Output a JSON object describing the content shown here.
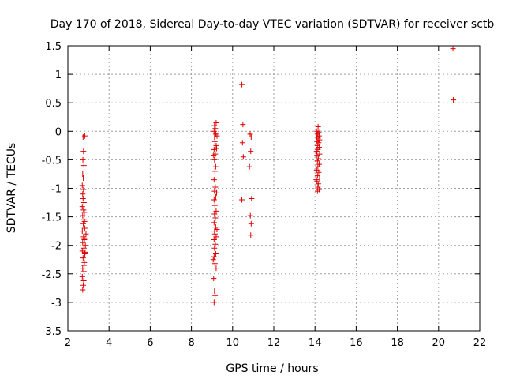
{
  "chart_data": {
    "type": "scatter",
    "title": "Day 170 of 2018, Sidereal Day-to-day VTEC variation (SDTVAR) for receiver sctb",
    "xlabel": "GPS time / hours",
    "ylabel": "SDTVAR / TECUs",
    "xlim": [
      2,
      22
    ],
    "ylim": [
      -3.5,
      1.5
    ],
    "xticks": [
      2,
      4,
      6,
      8,
      10,
      12,
      14,
      16,
      18,
      20,
      22
    ],
    "yticks": [
      -3.5,
      -3,
      -2.5,
      -2,
      -1.5,
      -1,
      -0.5,
      0,
      0.5,
      1,
      1.5
    ],
    "xtick_labels": [
      "2",
      "4",
      "6",
      "8",
      "10",
      "12",
      "14",
      "16",
      "18",
      "20",
      "22"
    ],
    "ytick_labels": [
      "-3.5",
      "-3",
      "-2.5",
      "-2",
      "-1.5",
      "-1",
      "-0.5",
      "0",
      "0.5",
      "1",
      "1.5"
    ],
    "grid": true,
    "marker": "+",
    "color": "#dd0000",
    "series": [
      {
        "name": "sctb",
        "points": [
          [
            2.72,
            -2.78
          ],
          [
            2.75,
            -2.7
          ],
          [
            2.7,
            -2.55
          ],
          [
            2.78,
            -2.46
          ],
          [
            2.72,
            -2.4
          ],
          [
            2.8,
            -2.3
          ],
          [
            2.74,
            -2.22
          ],
          [
            2.82,
            -2.15
          ],
          [
            2.7,
            -2.1
          ],
          [
            2.78,
            -2.05
          ],
          [
            2.85,
            -2.0
          ],
          [
            2.72,
            -1.95
          ],
          [
            2.8,
            -1.9
          ],
          [
            2.76,
            -1.85
          ],
          [
            2.88,
            -1.8
          ],
          [
            2.7,
            -1.75
          ],
          [
            2.82,
            -1.7
          ],
          [
            2.75,
            -1.62
          ],
          [
            2.78,
            -1.55
          ],
          [
            2.72,
            -1.48
          ],
          [
            2.8,
            -1.42
          ],
          [
            2.76,
            -1.38
          ],
          [
            2.7,
            -1.32
          ],
          [
            2.78,
            -1.25
          ],
          [
            2.74,
            -1.18
          ],
          [
            2.72,
            -1.1
          ],
          [
            2.76,
            -1.02
          ],
          [
            2.7,
            -0.95
          ],
          [
            2.75,
            -0.82
          ],
          [
            2.72,
            -0.75
          ],
          [
            2.78,
            -0.6
          ],
          [
            2.73,
            -0.5
          ],
          [
            2.76,
            -0.35
          ],
          [
            2.74,
            -0.1
          ],
          [
            2.82,
            -0.08
          ],
          [
            2.8,
            -1.88
          ],
          [
            2.84,
            -2.12
          ],
          [
            2.77,
            -2.62
          ],
          [
            2.81,
            -1.58
          ],
          [
            2.79,
            -2.35
          ],
          [
            9.1,
            -3.0
          ],
          [
            9.15,
            -2.88
          ],
          [
            9.12,
            -2.8
          ],
          [
            9.08,
            -2.58
          ],
          [
            9.2,
            -2.4
          ],
          [
            9.14,
            -2.32
          ],
          [
            9.1,
            -2.2
          ],
          [
            9.18,
            -2.15
          ],
          [
            9.12,
            -2.05
          ],
          [
            9.16,
            -1.98
          ],
          [
            9.1,
            -1.9
          ],
          [
            9.2,
            -1.85
          ],
          [
            9.14,
            -1.8
          ],
          [
            9.12,
            -1.75
          ],
          [
            9.18,
            -1.68
          ],
          [
            9.1,
            -1.6
          ],
          [
            9.16,
            -1.52
          ],
          [
            9.12,
            -1.45
          ],
          [
            9.2,
            -1.4
          ],
          [
            9.14,
            -1.3
          ],
          [
            9.1,
            -1.2
          ],
          [
            9.18,
            -1.15
          ],
          [
            9.12,
            -1.05
          ],
          [
            9.16,
            -0.98
          ],
          [
            9.1,
            -0.85
          ],
          [
            9.14,
            -0.7
          ],
          [
            9.18,
            -0.62
          ],
          [
            9.12,
            -0.5
          ],
          [
            9.16,
            -0.4
          ],
          [
            9.1,
            -0.32
          ],
          [
            9.2,
            -0.25
          ],
          [
            9.14,
            -0.18
          ],
          [
            9.12,
            -0.1
          ],
          [
            9.18,
            -0.05
          ],
          [
            9.1,
            0.0
          ],
          [
            9.16,
            0.05
          ],
          [
            9.12,
            0.1
          ],
          [
            9.2,
            0.15
          ],
          [
            9.22,
            -0.3
          ],
          [
            9.24,
            -0.08
          ],
          [
            9.08,
            -0.42
          ],
          [
            9.22,
            -1.08
          ],
          [
            9.06,
            -2.25
          ],
          [
            9.24,
            -1.72
          ],
          [
            10.45,
            0.82
          ],
          [
            10.5,
            0.12
          ],
          [
            10.48,
            -0.2
          ],
          [
            10.52,
            -0.45
          ],
          [
            10.45,
            -1.2
          ],
          [
            10.85,
            -0.05
          ],
          [
            10.9,
            -0.1
          ],
          [
            10.88,
            -0.35
          ],
          [
            10.82,
            -0.62
          ],
          [
            10.92,
            -1.18
          ],
          [
            10.86,
            -1.48
          ],
          [
            10.9,
            -1.62
          ],
          [
            10.88,
            -1.82
          ],
          [
            14.15,
            0.08
          ],
          [
            14.1,
            0.0
          ],
          [
            14.18,
            -0.02
          ],
          [
            14.12,
            -0.05
          ],
          [
            14.2,
            -0.08
          ],
          [
            14.08,
            -0.1
          ],
          [
            14.15,
            -0.12
          ],
          [
            14.22,
            -0.15
          ],
          [
            14.1,
            -0.18
          ],
          [
            14.18,
            -0.2
          ],
          [
            14.12,
            -0.25
          ],
          [
            14.2,
            -0.28
          ],
          [
            14.14,
            -0.32
          ],
          [
            14.08,
            -0.35
          ],
          [
            14.22,
            -0.4
          ],
          [
            14.1,
            -0.42
          ],
          [
            14.16,
            -0.48
          ],
          [
            14.12,
            -0.52
          ],
          [
            14.2,
            -0.58
          ],
          [
            14.14,
            -0.62
          ],
          [
            14.08,
            -0.68
          ],
          [
            14.18,
            -0.72
          ],
          [
            14.12,
            -0.78
          ],
          [
            14.22,
            -0.82
          ],
          [
            14.1,
            -0.88
          ],
          [
            14.16,
            -0.92
          ],
          [
            14.14,
            -0.98
          ],
          [
            14.2,
            -1.02
          ],
          [
            14.12,
            -1.05
          ],
          [
            14.06,
            -0.85
          ],
          [
            20.7,
            1.45
          ],
          [
            20.72,
            0.55
          ]
        ]
      }
    ]
  }
}
